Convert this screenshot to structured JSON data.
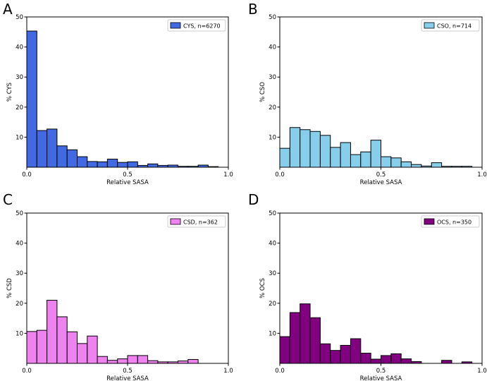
{
  "chart_data": [
    {
      "type": "bar",
      "panel_label": "A",
      "legend_label": "CYS, n=6270",
      "legend_position": "top-right",
      "color": "#4169e1",
      "bin_width": 0.05,
      "bin_starts": [
        0.0,
        0.05,
        0.1,
        0.15,
        0.2,
        0.25,
        0.3,
        0.35,
        0.4,
        0.45,
        0.5,
        0.55,
        0.6,
        0.65,
        0.7,
        0.75,
        0.8,
        0.85,
        0.9
      ],
      "values": [
        45.3,
        12.2,
        12.7,
        7.1,
        5.8,
        3.5,
        1.9,
        1.8,
        2.7,
        1.6,
        1.8,
        0.6,
        1.1,
        0.6,
        0.7,
        0.3,
        0.3,
        0.7,
        0.2
      ],
      "xlabel": "Relative SASA",
      "ylabel": "% CYS",
      "xlim": [
        0,
        1
      ],
      "ylim": [
        0,
        50
      ],
      "xticks": [
        "0.0",
        "0.5",
        "1.0"
      ],
      "yticks": [
        "10",
        "20",
        "30",
        "40",
        "50"
      ]
    },
    {
      "type": "bar",
      "panel_label": "B",
      "legend_label": "CSO, n=714",
      "legend_position": "top-right",
      "color": "#87ceeb",
      "bin_width": 0.05,
      "bin_starts": [
        0.0,
        0.05,
        0.1,
        0.15,
        0.2,
        0.25,
        0.3,
        0.35,
        0.4,
        0.45,
        0.5,
        0.55,
        0.6,
        0.65,
        0.7,
        0.75,
        0.8,
        0.85,
        0.9
      ],
      "values": [
        6.3,
        13.2,
        12.5,
        11.9,
        10.6,
        6.6,
        8.2,
        4.2,
        5.1,
        9.0,
        3.5,
        3.1,
        1.8,
        0.9,
        0.4,
        1.5,
        0.3,
        0.3,
        0.3
      ],
      "xlabel": "Relative SASA",
      "ylabel": "% CSO",
      "xlim": [
        0,
        1
      ],
      "ylim": [
        0,
        50
      ],
      "xticks": [
        "0.0",
        "0.5",
        "1.0"
      ],
      "yticks": [
        "10",
        "20",
        "30",
        "40",
        "50"
      ]
    },
    {
      "type": "bar",
      "panel_label": "C",
      "legend_label": "CSD, n=362",
      "legend_position": "top-right",
      "color": "#ee82ee",
      "bin_width": 0.05,
      "bin_starts": [
        0.0,
        0.05,
        0.1,
        0.15,
        0.2,
        0.25,
        0.3,
        0.35,
        0.4,
        0.45,
        0.5,
        0.55,
        0.6,
        0.65,
        0.7,
        0.75,
        0.8,
        0.85,
        0.9
      ],
      "values": [
        10.6,
        11.0,
        21.0,
        15.5,
        10.5,
        6.6,
        9.1,
        2.3,
        1.0,
        1.5,
        2.6,
        2.6,
        0.9,
        0.5,
        0.5,
        0.8,
        1.3,
        0,
        0
      ],
      "xlabel": "Relative SASA",
      "ylabel": "% CSD",
      "xlim": [
        0,
        1
      ],
      "ylim": [
        0,
        50
      ],
      "xticks": [
        "0.0",
        "0.5",
        "1.0"
      ],
      "yticks": [
        "10",
        "20",
        "30",
        "40",
        "50"
      ]
    },
    {
      "type": "bar",
      "panel_label": "D",
      "legend_label": "OCS, n=350",
      "legend_position": "top-right",
      "color": "#800080",
      "bin_width": 0.05,
      "bin_starts": [
        0.0,
        0.05,
        0.1,
        0.15,
        0.2,
        0.25,
        0.3,
        0.35,
        0.4,
        0.45,
        0.5,
        0.55,
        0.6,
        0.65,
        0.7,
        0.75,
        0.8,
        0.85,
        0.9
      ],
      "values": [
        8.9,
        16.9,
        19.8,
        15.2,
        6.5,
        4.3,
        6.0,
        8.2,
        3.4,
        1.4,
        2.6,
        3.2,
        1.5,
        0.6,
        0,
        0,
        1.0,
        0,
        0.5
      ],
      "xlabel": "Relative SASA",
      "ylabel": "% OCS",
      "xlim": [
        0,
        1
      ],
      "ylim": [
        0,
        50
      ],
      "xticks": [
        "0.0",
        "0.5",
        "1.0"
      ],
      "yticks": [
        "10",
        "20",
        "30",
        "40",
        "50"
      ]
    }
  ]
}
